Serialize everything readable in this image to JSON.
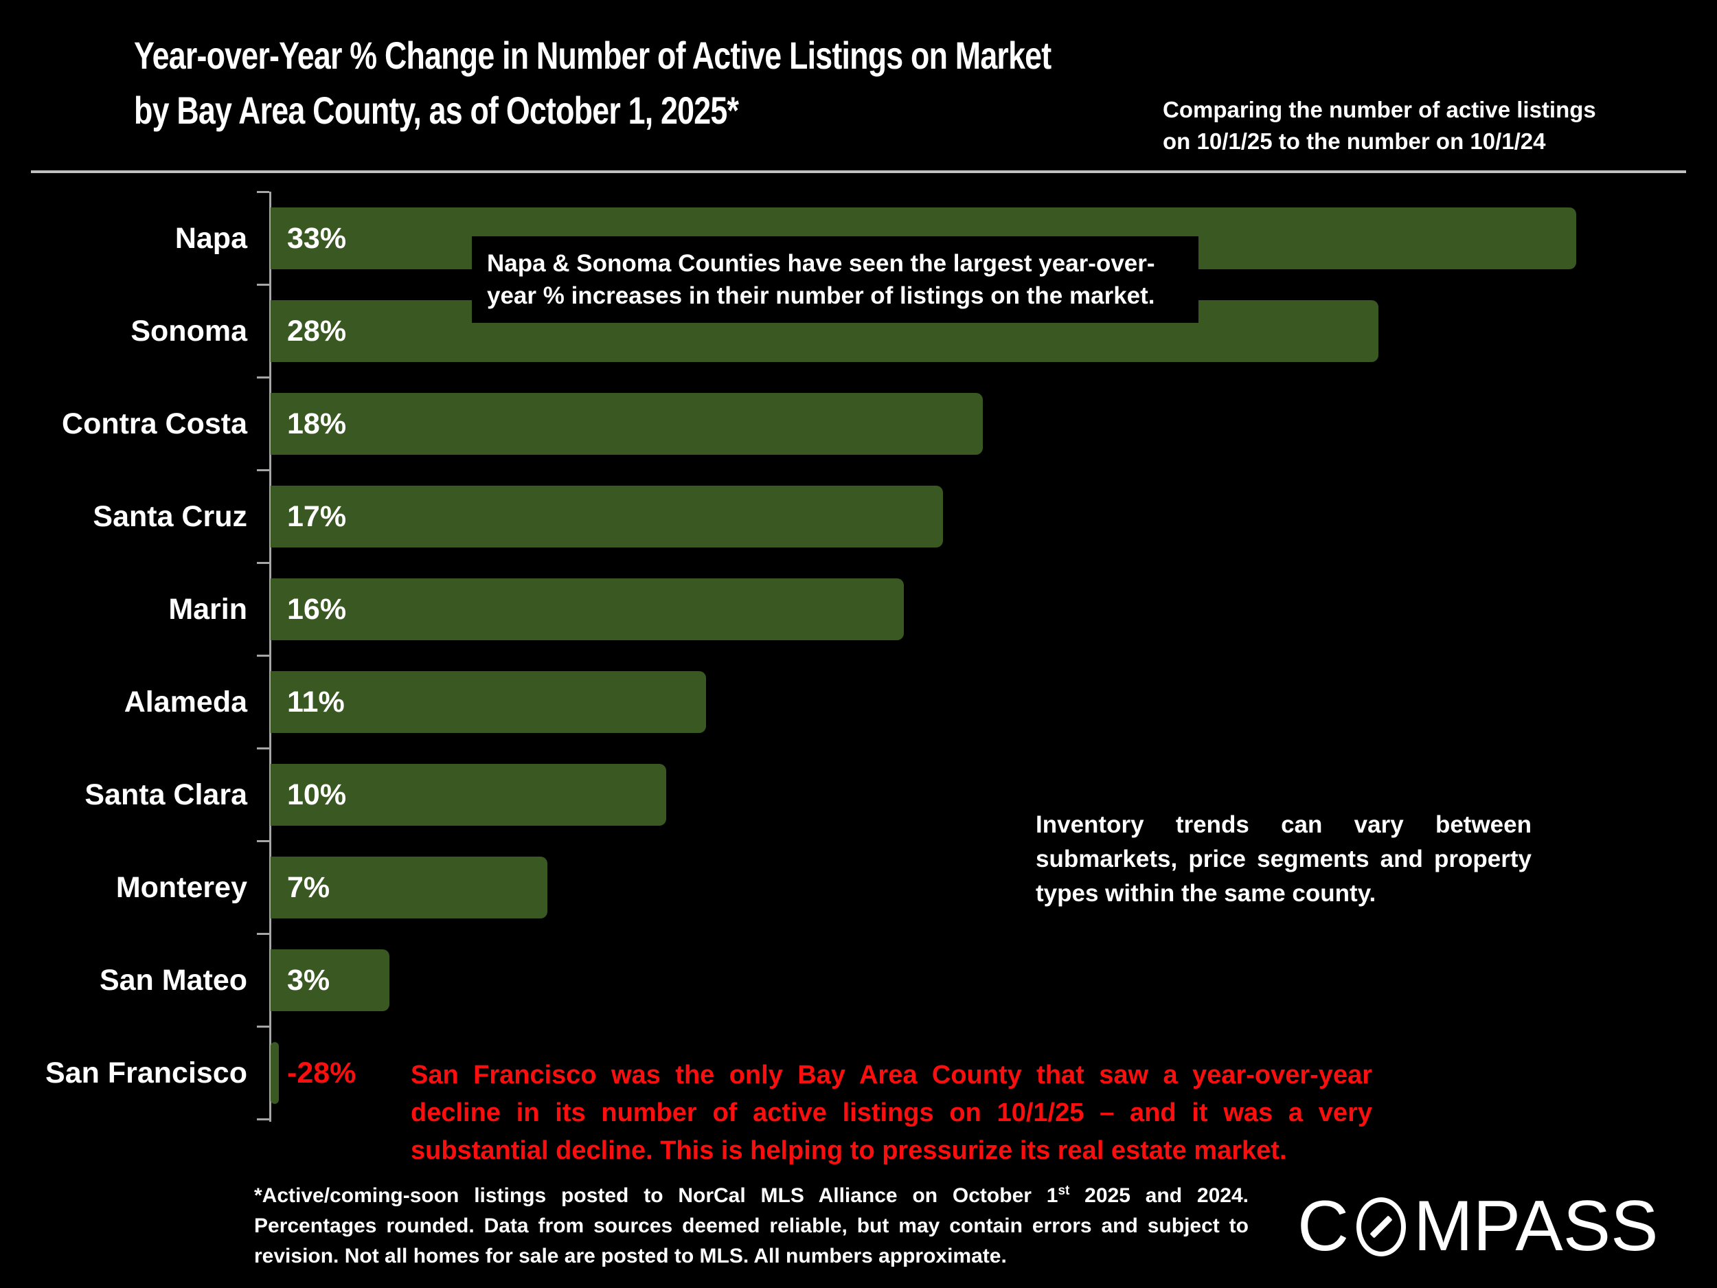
{
  "header": {
    "title": "Year-over-Year % Change in Number of Active Listings on Market",
    "subtitle": "by Bay Area County, as of October 1, 2025*",
    "comparison_note_line1": "Comparing the number of active listings",
    "comparison_note_line2": "on 10/1/25 to the number on 10/1/24"
  },
  "chart_data": {
    "type": "bar",
    "orientation": "horizontal",
    "categories": [
      "Napa",
      "Sonoma",
      "Contra Costa",
      "Santa Cruz",
      "Marin",
      "Alameda",
      "Santa Clara",
      "Monterey",
      "San Mateo",
      "San Francisco"
    ],
    "values": [
      33,
      28,
      18,
      17,
      16,
      11,
      10,
      7,
      3,
      -28
    ],
    "value_labels": [
      "33%",
      "28%",
      "18%",
      "17%",
      "16%",
      "11%",
      "10%",
      "7%",
      "3%",
      "-28%"
    ],
    "xlabel": "",
    "ylabel": "",
    "xlim": [
      0,
      36
    ],
    "gridlines": false,
    "legend": "none"
  },
  "annotations": {
    "top_note": "Napa & Sonoma Counties have seen the largest year-over-year % increases in their number of listings on the market.",
    "inventory_note": "Inventory trends can vary between submarkets, price segments and property types within the same county.",
    "sf_note": "San Francisco was the only Bay Area County that saw a year-over-year decline in its number of active listings on 10/1/25 – and it was a very substantial decline. This is helping to pressurize its real estate market."
  },
  "footnote": {
    "part1": "*Active/coming-soon listings posted to NorCal MLS Alliance on October 1",
    "superscript": "st",
    "part2": " 2025 and 2024. Percentages rounded. Data from sources deemed reliable, but may contain errors and subject to revision. Not all homes for sale are posted to MLS. All numbers approximate."
  },
  "logo": {
    "brand": "COMPASS"
  },
  "colors": {
    "background": "#000000",
    "bar_green": "#3a5822",
    "negative_red": "#fb0e0e",
    "axis_gray": "#a6a6a6",
    "rule_gray": "#c0c0c0",
    "text_white": "#ffffff"
  }
}
